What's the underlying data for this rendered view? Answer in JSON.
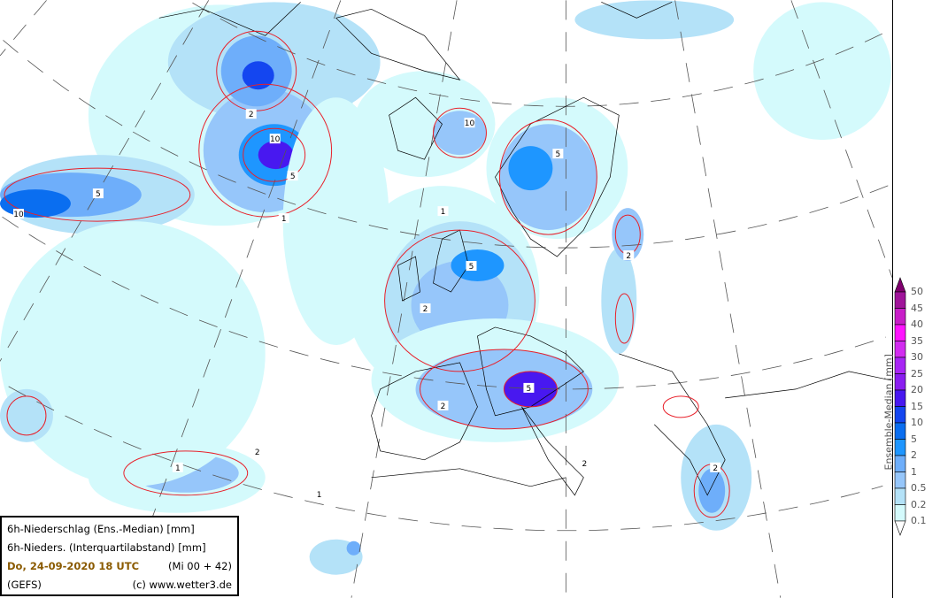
{
  "info": {
    "line1": "6h-Niederschlag (Ens.-Median) [mm]",
    "line2": "6h-Nieders. (Interquartilabstand) [mm]",
    "date": "Do, 24-09-2020   18 UTC",
    "run": "(Mi 00 + 42)",
    "model": "(GEFS)",
    "copyright": "(c) www.wetter3.de"
  },
  "colorbar": {
    "title": "Ensemble-Median [mm]",
    "ticks": [
      "50",
      "45",
      "40",
      "35",
      "30",
      "25",
      "20",
      "15",
      "10",
      "5",
      "2",
      "1",
      "0.5",
      "0.2",
      "0.1"
    ],
    "colors_top_to_bottom": [
      "#a0149a",
      "#c81ec8",
      "#ff14ff",
      "#d22cf0",
      "#a826f5",
      "#8a1ef0",
      "#4818f0",
      "#1446f0",
      "#0a6ef0",
      "#1e96ff",
      "#6eaefa",
      "#96c6fa",
      "#b4e2f8",
      "#d4fafc"
    ],
    "over_color": "#80006e",
    "under_color": "#ffffff"
  },
  "map": {
    "contour_color": "#e8202a",
    "coastline_color": "#000000",
    "graticule_color": "#555555",
    "contour_levels": [
      "1",
      "2",
      "5",
      "10"
    ]
  }
}
